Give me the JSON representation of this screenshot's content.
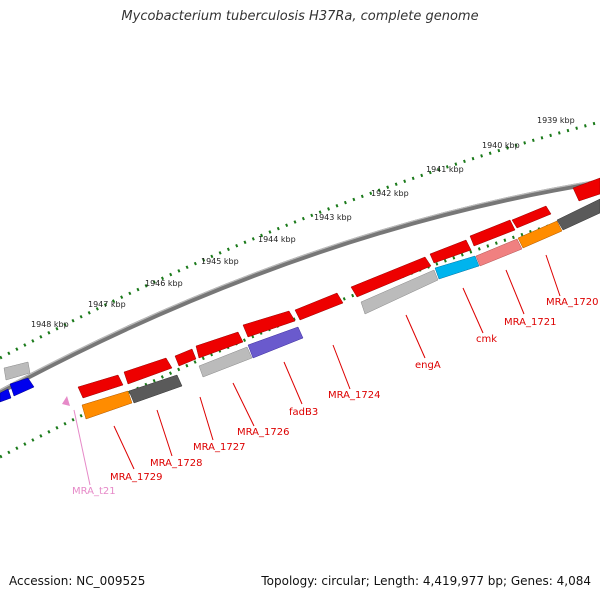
{
  "title": "Mycobacterium tuberculosis H37Ra, complete genome",
  "footer": {
    "accession": "Accession: NC_009525",
    "topology": "Topology: circular; Length: 4,419,977 bp; Genes: 4,084"
  },
  "colors": {
    "backbone": "#777777",
    "ruler_ticks": "#1a7a1a",
    "gene_red": "#ee0000",
    "gene_orange": "#ff8c00",
    "gene_darkgray": "#5a5a5a",
    "gene_lightgray": "#b8b8b8",
    "gene_purple": "#6a5acd",
    "gene_cyan": "#00b4ee",
    "gene_pink": "#f08080",
    "gene_blue": "#0000ee",
    "label_red": "#dd0000",
    "label_pink": "#e68ac8"
  },
  "ruler": {
    "labels": [
      "1939 kbp",
      "1940 kbp",
      "1941 kbp",
      "1942 kbp",
      "1943 kbp",
      "1944 kbp",
      "1945 kbp",
      "1946 kbp",
      "1947 kbp",
      "1948 kbp"
    ]
  },
  "gene_labels": [
    "MRA_1720",
    "MRA_1721",
    "cmk",
    "engA",
    "MRA_1724",
    "fadB3",
    "MRA_1726",
    "MRA_1727",
    "MRA_1728",
    "MRA_1729",
    "MRA_t21"
  ]
}
